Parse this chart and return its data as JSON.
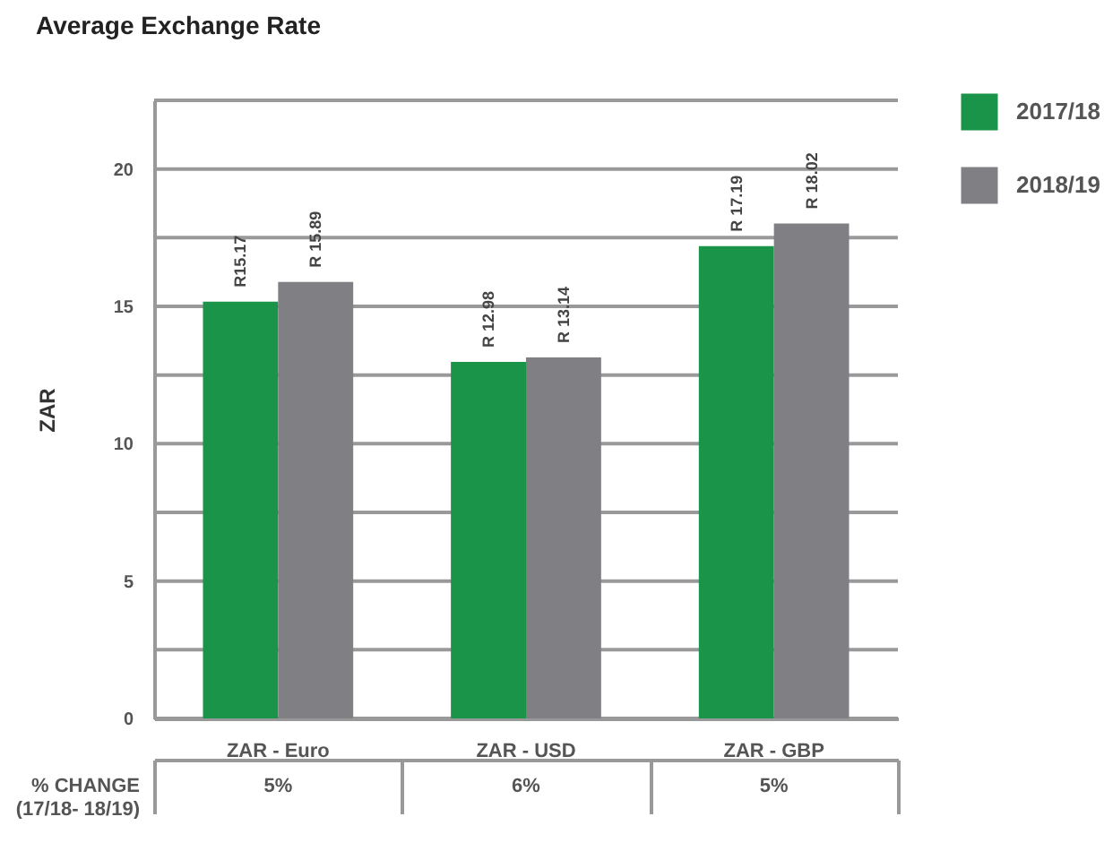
{
  "chart_data": {
    "type": "bar",
    "title": "Average Exchange Rate",
    "ylabel": "ZAR",
    "categories": [
      "ZAR - Euro",
      "ZAR - USD",
      "ZAR - GBP"
    ],
    "series": [
      {
        "name": "2017/18",
        "color": "#1a9449",
        "values": [
          15.17,
          12.98,
          17.19
        ],
        "value_labels": [
          "R15.17",
          "R 12.98",
          "R 17.19"
        ]
      },
      {
        "name": "2018/19",
        "color": "#808084",
        "values": [
          15.89,
          13.14,
          18.02
        ],
        "value_labels": [
          "R 15.89",
          "R 13.14",
          "R 18.02"
        ]
      }
    ],
    "ylim": [
      0,
      22.5
    ],
    "yticks": [
      0,
      {
        "value": 2.5,
        "label": null
      },
      5,
      {
        "value": 7.5,
        "label": null
      },
      10,
      {
        "value": 12.5,
        "label": null
      },
      15,
      {
        "value": 17.5,
        "label": null
      },
      20,
      {
        "value": 22.5,
        "label": null
      }
    ],
    "grid": "y",
    "legend": "top right",
    "annotations": [
      "% CHANGE (17/18- 18/19)",
      "5%",
      "6%",
      "5%"
    ]
  }
}
